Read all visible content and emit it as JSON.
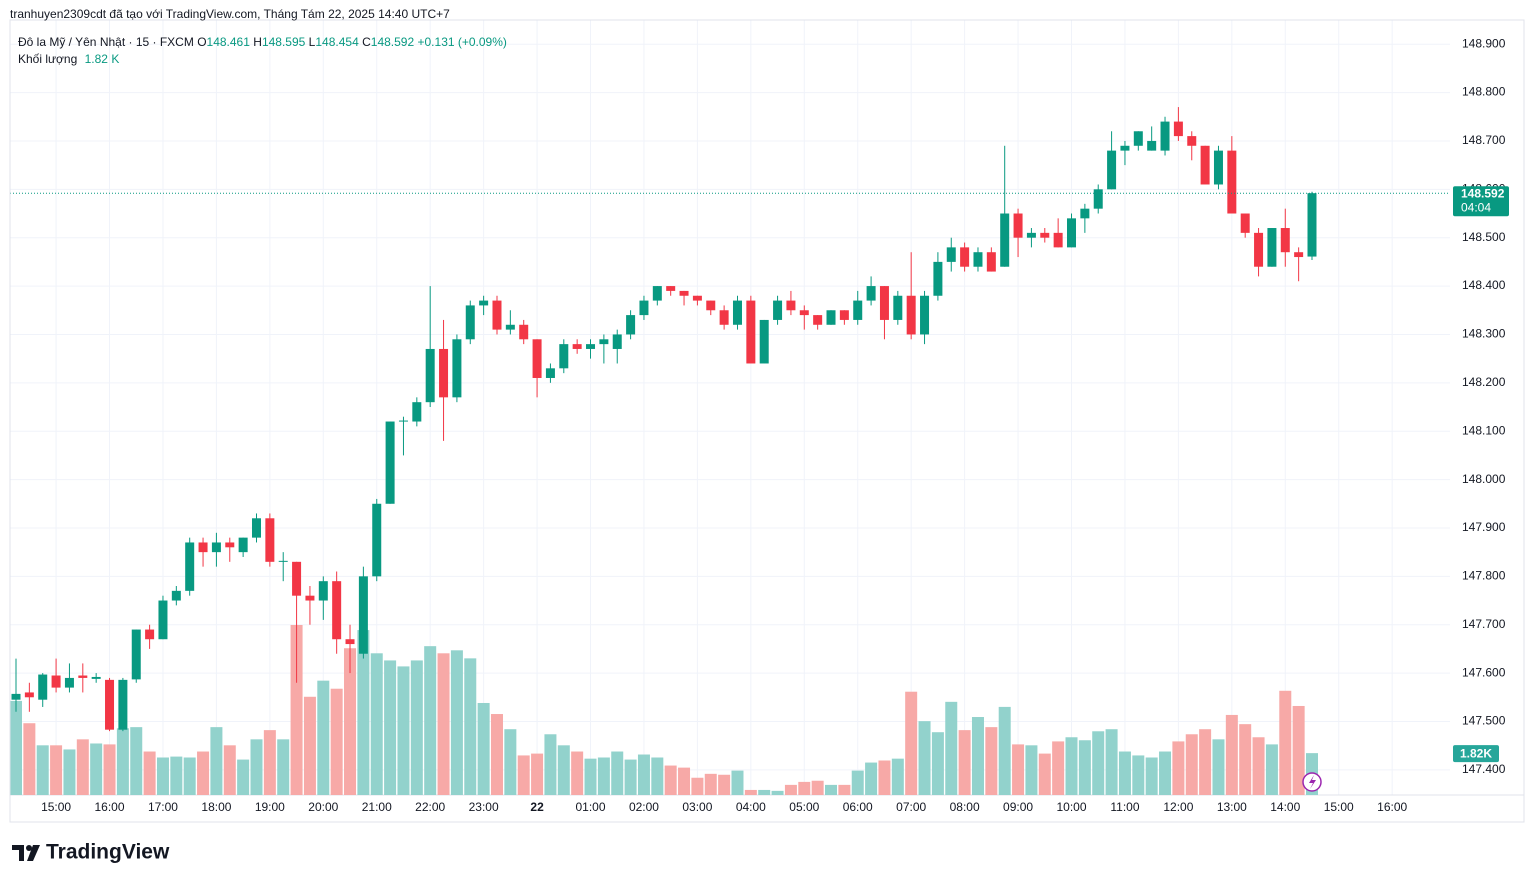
{
  "header": {
    "attribution": "tranhuyen2309cdt đã tạo với TradingView.com, Tháng Tám 22, 2025 14:40 UTC+7",
    "logo": "TradingView"
  },
  "legend": {
    "o": "O",
    "h": "H",
    "l": "L",
    "c": "C",
    "change": "+0.131 (+0.09%)",
    "volume_name": "Khối lượng",
    "volume_value": "1.82 K"
  },
  "price_tag": {
    "countdown": "04:04"
  },
  "volume_tag": "1.82K",
  "chart_data": {
    "type": "candlestick",
    "title": "Đô la Mỹ / Yên Nhật · 15 · FXCM",
    "up_color": "#089981",
    "down_color": "#f23645",
    "volume_up_color": "#92d2cc",
    "volume_down_color": "#f7a9a7",
    "grid": true,
    "ylim": [
      147.348,
      148.95
    ],
    "yticks": [
      {
        "value": 148.9,
        "label": "148.900"
      },
      {
        "value": 148.8,
        "label": "148.800"
      },
      {
        "value": 148.7,
        "label": "148.700"
      },
      {
        "value": 148.6,
        "label": "148.600"
      },
      {
        "value": 148.5,
        "label": "148.500"
      },
      {
        "value": 148.4,
        "label": "148.400"
      },
      {
        "value": 148.3,
        "label": "148.300"
      },
      {
        "value": 148.2,
        "label": "148.200"
      },
      {
        "value": 148.1,
        "label": "148.100"
      },
      {
        "value": 148.0,
        "label": "148.000"
      },
      {
        "value": 147.9,
        "label": "147.900"
      },
      {
        "value": 147.8,
        "label": "147.800"
      },
      {
        "value": 147.7,
        "label": "147.700"
      },
      {
        "value": 147.6,
        "label": "147.600"
      },
      {
        "value": 147.5,
        "label": "147.500"
      },
      {
        "value": 147.4,
        "label": "147.400"
      }
    ],
    "xtick_labels": [
      "15:00",
      "16:00",
      "17:00",
      "18:00",
      "19:00",
      "20:00",
      "21:00",
      "22:00",
      "23:00",
      "22",
      "01:00",
      "02:00",
      "03:00",
      "04:00",
      "05:00",
      "06:00",
      "07:00",
      "08:00",
      "09:00",
      "10:00",
      "11:00",
      "12:00",
      "13:00",
      "14:00",
      "15:00",
      "16:00"
    ],
    "open": [
      147.545,
      147.56,
      147.545,
      147.595,
      147.57,
      147.595,
      147.588,
      147.586,
      147.483,
      147.587,
      147.69,
      147.67,
      147.75,
      147.77,
      147.87,
      147.85,
      147.87,
      147.85,
      147.88,
      147.92,
      147.83,
      147.83,
      147.76,
      147.75,
      147.79,
      147.67,
      147.64,
      147.8,
      147.95,
      148.12,
      148.12,
      148.16,
      148.27,
      148.17,
      148.29,
      148.36,
      148.37,
      148.31,
      148.32,
      148.29,
      148.21,
      148.23,
      148.28,
      148.27,
      148.28,
      148.27,
      148.3,
      148.34,
      148.37,
      148.4,
      148.39,
      148.38,
      148.37,
      148.35,
      148.32,
      148.37,
      148.24,
      148.33,
      148.37,
      148.35,
      148.34,
      148.32,
      148.35,
      148.33,
      148.37,
      148.4,
      148.33,
      148.38,
      148.3,
      148.38,
      148.45,
      148.48,
      148.44,
      148.47,
      148.44,
      148.55,
      148.5,
      148.51,
      148.51,
      148.48,
      148.54,
      148.56,
      148.6,
      148.68,
      148.69,
      148.68,
      148.68,
      148.74,
      148.71,
      148.69,
      148.61,
      148.68,
      148.55,
      148.51,
      148.44,
      148.52,
      148.47,
      148.461
    ],
    "high": [
      147.63,
      147.58,
      147.6,
      147.63,
      147.62,
      147.62,
      147.6,
      147.59,
      147.59,
      147.69,
      147.7,
      147.76,
      147.78,
      147.88,
      147.88,
      147.89,
      147.88,
      147.88,
      147.93,
      147.93,
      147.85,
      147.83,
      147.78,
      147.8,
      147.81,
      147.7,
      147.82,
      147.96,
      148.12,
      148.13,
      148.17,
      148.4,
      148.33,
      148.3,
      148.37,
      148.38,
      148.38,
      148.35,
      148.33,
      148.29,
      148.24,
      148.29,
      148.29,
      148.29,
      148.3,
      148.31,
      148.35,
      148.38,
      148.4,
      148.4,
      148.39,
      148.38,
      148.37,
      148.36,
      148.38,
      148.38,
      148.33,
      148.38,
      148.39,
      148.36,
      148.34,
      148.35,
      148.35,
      148.39,
      148.42,
      148.4,
      148.39,
      148.47,
      148.39,
      148.47,
      148.5,
      148.49,
      148.48,
      148.48,
      148.69,
      148.56,
      148.52,
      148.52,
      148.54,
      148.55,
      148.57,
      148.61,
      148.72,
      148.7,
      148.72,
      148.73,
      148.75,
      148.77,
      148.72,
      148.69,
      148.69,
      148.71,
      148.55,
      148.52,
      148.52,
      148.56,
      148.48,
      148.595
    ],
    "low": [
      147.52,
      147.52,
      147.53,
      147.56,
      147.56,
      147.56,
      147.58,
      147.48,
      147.48,
      147.58,
      147.65,
      147.67,
      147.74,
      147.76,
      147.82,
      147.82,
      147.83,
      147.84,
      147.87,
      147.82,
      147.79,
      147.58,
      147.7,
      147.71,
      147.64,
      147.6,
      147.63,
      147.79,
      147.95,
      148.05,
      148.11,
      148.15,
      148.08,
      148.16,
      148.28,
      148.34,
      148.3,
      148.3,
      148.28,
      148.17,
      148.2,
      148.22,
      148.26,
      148.25,
      148.24,
      148.24,
      148.29,
      148.33,
      148.36,
      148.38,
      148.36,
      148.36,
      148.34,
      148.31,
      148.31,
      148.24,
      148.24,
      148.32,
      148.34,
      148.31,
      148.31,
      148.32,
      148.32,
      148.32,
      148.36,
      148.29,
      148.32,
      148.29,
      148.28,
      148.37,
      148.43,
      148.43,
      148.43,
      148.43,
      148.44,
      148.46,
      148.48,
      148.49,
      148.48,
      148.48,
      148.51,
      148.55,
      148.6,
      148.65,
      148.68,
      148.68,
      148.67,
      148.7,
      148.66,
      148.61,
      148.6,
      148.55,
      148.5,
      148.42,
      148.44,
      148.44,
      148.41,
      148.454
    ],
    "close": [
      147.557,
      147.55,
      147.597,
      147.57,
      147.59,
      147.59,
      147.592,
      147.483,
      147.586,
      147.69,
      147.67,
      147.75,
      147.77,
      147.87,
      147.85,
      147.87,
      147.86,
      147.88,
      147.92,
      147.83,
      147.832,
      147.76,
      147.75,
      147.79,
      147.67,
      147.66,
      147.8,
      147.95,
      148.12,
      148.122,
      148.16,
      148.27,
      148.17,
      148.29,
      148.36,
      148.37,
      148.31,
      148.32,
      148.29,
      148.21,
      148.23,
      148.28,
      148.27,
      148.28,
      148.29,
      148.3,
      148.34,
      148.37,
      148.4,
      148.39,
      148.38,
      148.37,
      148.35,
      148.32,
      148.37,
      148.24,
      148.33,
      148.37,
      148.35,
      148.34,
      148.32,
      148.35,
      148.33,
      148.37,
      148.4,
      148.33,
      148.38,
      148.3,
      148.38,
      148.45,
      148.48,
      148.44,
      148.47,
      148.43,
      148.55,
      148.5,
      148.51,
      148.5,
      148.48,
      148.54,
      148.56,
      148.6,
      148.68,
      148.69,
      148.72,
      148.7,
      148.74,
      148.71,
      148.69,
      148.61,
      148.68,
      148.55,
      148.51,
      148.44,
      148.52,
      148.47,
      148.46,
      148.592
    ],
    "volume": [
      4090,
      3120,
      2160,
      2160,
      1980,
      2420,
      2240,
      2200,
      2900,
      2950,
      1890,
      1630,
      1670,
      1630,
      1890,
      2950,
      2160,
      1540,
      2420,
      2820,
      2420,
      7390,
      4270,
      4970,
      4620,
      6380,
      7170,
      6160,
      5850,
      5590,
      5850,
      6470,
      6160,
      6290,
      5940,
      4000,
      3520,
      2860,
      1720,
      1800,
      2640,
      2160,
      1890,
      1580,
      1630,
      1890,
      1540,
      1760,
      1630,
      1280,
      1190,
      750,
      920,
      880,
      1060,
      220,
      220,
      180,
      440,
      570,
      620,
      440,
      440,
      1060,
      1410,
      1500,
      1580,
      4490,
      3210,
      2730,
      4050,
      2820,
      3390,
      2950,
      3830,
      2200,
      2160,
      1800,
      2330,
      2510,
      2380,
      2770,
      2860,
      1890,
      1720,
      1630,
      1890,
      2330,
      2640,
      2860,
      2420,
      3480,
      3080,
      2510,
      2200,
      4530,
      3870,
      1820
    ]
  }
}
